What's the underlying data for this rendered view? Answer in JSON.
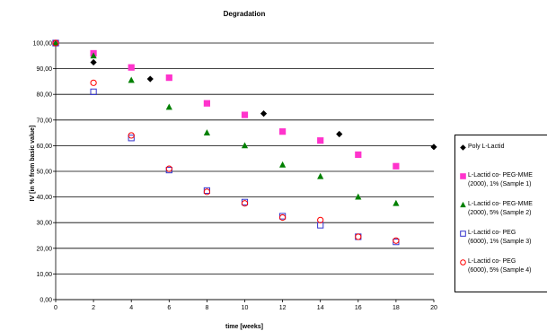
{
  "chart_data": {
    "type": "scatter",
    "title": "Degradation",
    "xlabel": "time [weeks]",
    "ylabel": "IV [in % from basic value]",
    "xlim": [
      0,
      20
    ],
    "ylim": [
      0,
      100
    ],
    "x_ticks": [
      "0",
      "2",
      "4",
      "6",
      "8",
      "10",
      "12",
      "14",
      "16",
      "18",
      "20"
    ],
    "y_ticks": [
      "0,00",
      "10,00",
      "20,00",
      "30,00",
      "40,00",
      "50,00",
      "60,00",
      "70,00",
      "80,00",
      "90,00",
      "100,00"
    ],
    "grid": "horizontal",
    "legend_position": "right",
    "series": [
      {
        "name": "Poly L-Lactid",
        "marker": "diamond",
        "color": "#000000",
        "x": [
          0,
          2,
          5,
          11,
          15,
          20
        ],
        "y": [
          100,
          92.5,
          86,
          72.5,
          64.5,
          59.5
        ]
      },
      {
        "name": "L-Lactid co- PEG-MME (2000), 1% (Sample 1)",
        "legend_lines": [
          "L-Lactid co- PEG-MME",
          "(2000), 1% (Sample 1)"
        ],
        "marker": "square",
        "color": "#ff33cc",
        "x": [
          0,
          2,
          4,
          6,
          8,
          10,
          12,
          14,
          16,
          18
        ],
        "y": [
          100,
          96,
          90.5,
          86.5,
          76.5,
          72,
          65.5,
          62,
          56.5,
          52
        ]
      },
      {
        "name": "L-Lactid co- PEG-MME (2000), 5% (Sample 2)",
        "legend_lines": [
          "L-Lactid co- PEG-MME",
          "(2000), 5% (Sample 2)"
        ],
        "marker": "triangle",
        "color": "#008000",
        "x": [
          0,
          2,
          4,
          6,
          8,
          10,
          12,
          14,
          16,
          18
        ],
        "y": [
          100,
          95,
          85.5,
          75,
          65,
          60,
          52.5,
          48,
          40,
          37.5
        ]
      },
      {
        "name": "L-Lactid co- PEG (6000), 1% (Sample 3)",
        "legend_lines": [
          "L-Lactid co- PEG",
          "(6000), 1% (Sample 3)"
        ],
        "marker": "open-square",
        "color": "#3333cc",
        "x": [
          0,
          2,
          4,
          6,
          8,
          10,
          12,
          14,
          16,
          18
        ],
        "y": [
          100,
          81,
          63,
          50.5,
          42.5,
          38,
          32.5,
          29,
          24.5,
          22.5
        ]
      },
      {
        "name": "L-Lactid co- PEG (6000), 5% (Sample 4)",
        "legend_lines": [
          "L-Lactid co- PEG",
          "(6000), 5% (Sample 4)"
        ],
        "marker": "open-circle",
        "color": "#ff0000",
        "x": [
          0,
          2,
          4,
          6,
          8,
          10,
          12,
          14,
          16,
          18
        ],
        "y": [
          100,
          84.5,
          64,
          51,
          42,
          37.5,
          32,
          31,
          24.5,
          23
        ]
      }
    ]
  }
}
